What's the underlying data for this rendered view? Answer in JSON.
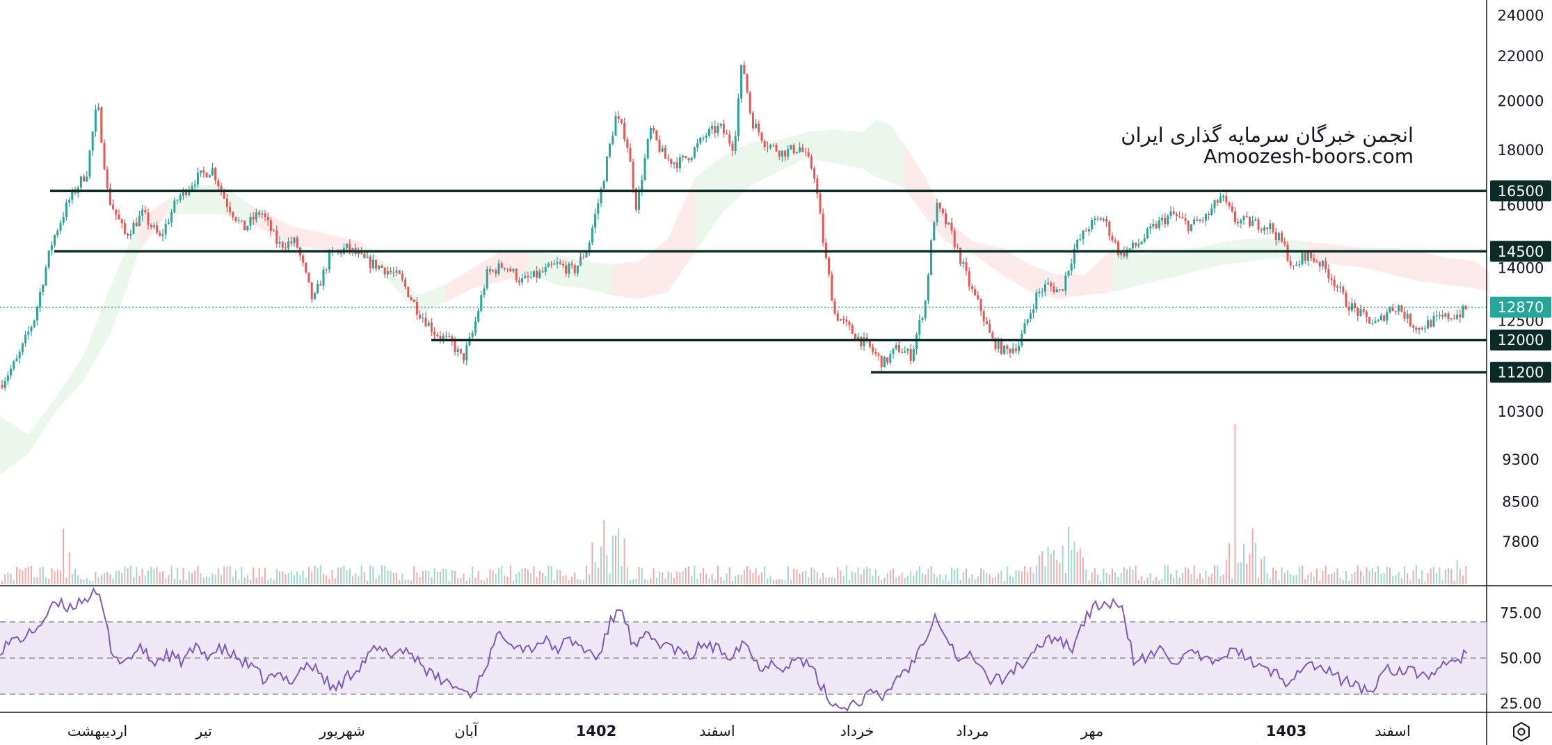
{
  "chart_data": {
    "type": "candlestick",
    "watermark": {
      "line1": "انجمن خبرگان سرمایه گذاری ایران",
      "line2": "Amoozesh-boors.com"
    },
    "price_axis": {
      "ticks": [
        24000,
        22000,
        20000,
        18000,
        16000,
        14000,
        12500,
        10300,
        9300,
        8500,
        7800
      ],
      "scale": "log",
      "range": [
        7100,
        24800
      ]
    },
    "rsi_axis": {
      "ticks": [
        "75.00",
        "50.00",
        "25.00"
      ],
      "range": [
        20,
        90
      ],
      "levels": [
        70,
        50,
        30
      ]
    },
    "time_axis": {
      "labels": [
        "اردیبهشت",
        "تیر",
        "شهریور",
        "آبان",
        "1402",
        "اسفند",
        "خرداد",
        "مرداد",
        "مهر",
        "1403",
        "اسفند"
      ]
    },
    "levels": [
      {
        "price": 16500,
        "label": "16500"
      },
      {
        "price": 14500,
        "label": "14500"
      },
      {
        "price": 12000,
        "label": "12000"
      },
      {
        "price": 11200,
        "label": "11200"
      }
    ],
    "last_price": {
      "price": 12870,
      "label": "12870"
    },
    "price_path": [
      [
        0,
        10900
      ],
      [
        25,
        11500
      ],
      [
        50,
        12600
      ],
      [
        75,
        14800
      ],
      [
        100,
        16200
      ],
      [
        125,
        17200
      ],
      [
        140,
        19900
      ],
      [
        155,
        16300
      ],
      [
        180,
        15000
      ],
      [
        205,
        15700
      ],
      [
        230,
        14900
      ],
      [
        255,
        16200
      ],
      [
        280,
        16900
      ],
      [
        305,
        17300
      ],
      [
        325,
        16100
      ],
      [
        350,
        15200
      ],
      [
        375,
        15800
      ],
      [
        400,
        14700
      ],
      [
        425,
        14800
      ],
      [
        450,
        13000
      ],
      [
        475,
        14400
      ],
      [
        500,
        14600
      ],
      [
        525,
        14200
      ],
      [
        550,
        14000
      ],
      [
        575,
        13700
      ],
      [
        600,
        12800
      ],
      [
        625,
        12200
      ],
      [
        650,
        11900
      ],
      [
        665,
        11500
      ],
      [
        680,
        12200
      ],
      [
        700,
        13800
      ],
      [
        725,
        14100
      ],
      [
        750,
        13600
      ],
      [
        775,
        13800
      ],
      [
        800,
        14100
      ],
      [
        825,
        13900
      ],
      [
        845,
        14600
      ],
      [
        865,
        16600
      ],
      [
        885,
        19300
      ],
      [
        900,
        18500
      ],
      [
        915,
        15900
      ],
      [
        935,
        18800
      ],
      [
        955,
        17700
      ],
      [
        975,
        17500
      ],
      [
        995,
        17900
      ],
      [
        1015,
        18600
      ],
      [
        1035,
        18900
      ],
      [
        1055,
        18100
      ],
      [
        1067,
        21800
      ],
      [
        1080,
        19200
      ],
      [
        1100,
        18300
      ],
      [
        1125,
        17900
      ],
      [
        1150,
        18100
      ],
      [
        1170,
        17200
      ],
      [
        1185,
        14500
      ],
      [
        1200,
        12700
      ],
      [
        1225,
        12200
      ],
      [
        1250,
        11800
      ],
      [
        1270,
        11400
      ],
      [
        1290,
        11800
      ],
      [
        1310,
        11600
      ],
      [
        1330,
        13000
      ],
      [
        1345,
        16000
      ],
      [
        1365,
        15200
      ],
      [
        1380,
        14300
      ],
      [
        1395,
        13400
      ],
      [
        1410,
        12800
      ],
      [
        1425,
        12000
      ],
      [
        1445,
        11700
      ],
      [
        1465,
        11900
      ],
      [
        1490,
        13200
      ],
      [
        1505,
        13500
      ],
      [
        1525,
        13300
      ],
      [
        1545,
        14600
      ],
      [
        1565,
        15300
      ],
      [
        1585,
        15600
      ],
      [
        1610,
        14400
      ],
      [
        1635,
        14700
      ],
      [
        1660,
        15300
      ],
      [
        1685,
        15700
      ],
      [
        1710,
        15300
      ],
      [
        1735,
        15600
      ],
      [
        1755,
        16300
      ],
      [
        1775,
        15500
      ],
      [
        1800,
        15400
      ],
      [
        1825,
        15300
      ],
      [
        1845,
        14700
      ],
      [
        1860,
        13900
      ],
      [
        1875,
        14400
      ],
      [
        1895,
        14200
      ],
      [
        1915,
        13700
      ],
      [
        1935,
        13000
      ],
      [
        1960,
        12600
      ],
      [
        1980,
        12400
      ],
      [
        1995,
        12800
      ],
      [
        2010,
        12900
      ],
      [
        2025,
        12500
      ],
      [
        2040,
        12300
      ],
      [
        2060,
        12500
      ],
      [
        2080,
        12600
      ],
      [
        2100,
        12700
      ],
      [
        2110,
        12870
      ]
    ],
    "cloud_upper": [
      [
        0,
        10200
      ],
      [
        40,
        9800
      ],
      [
        80,
        10600
      ],
      [
        120,
        11600
      ],
      [
        160,
        13500
      ],
      [
        200,
        15500
      ],
      [
        240,
        16200
      ],
      [
        280,
        16700
      ],
      [
        320,
        16700
      ],
      [
        360,
        16000
      ],
      [
        420,
        15300
      ],
      [
        480,
        15000
      ],
      [
        520,
        14800
      ],
      [
        560,
        14000
      ],
      [
        600,
        13200
      ],
      [
        640,
        13500
      ],
      [
        680,
        14000
      ],
      [
        720,
        14500
      ],
      [
        760,
        14500
      ],
      [
        800,
        14400
      ],
      [
        840,
        14200
      ],
      [
        880,
        14100
      ],
      [
        920,
        14200
      ],
      [
        960,
        14900
      ],
      [
        1000,
        17000
      ],
      [
        1040,
        17800
      ],
      [
        1080,
        18300
      ],
      [
        1120,
        18400
      ],
      [
        1160,
        18700
      ],
      [
        1200,
        18800
      ],
      [
        1240,
        18700
      ],
      [
        1260,
        19200
      ],
      [
        1280,
        19000
      ],
      [
        1300,
        18200
      ],
      [
        1330,
        17000
      ],
      [
        1360,
        15500
      ],
      [
        1400,
        14800
      ],
      [
        1440,
        14600
      ],
      [
        1480,
        14100
      ],
      [
        1520,
        13800
      ],
      [
        1560,
        13800
      ],
      [
        1600,
        14600
      ],
      [
        1640,
        14400
      ],
      [
        1680,
        14500
      ],
      [
        1720,
        14600
      ],
      [
        1760,
        14800
      ],
      [
        1800,
        14900
      ],
      [
        1840,
        14900
      ],
      [
        1880,
        14800
      ],
      [
        1920,
        14700
      ],
      [
        1960,
        14600
      ],
      [
        2000,
        14600
      ],
      [
        2040,
        14500
      ],
      [
        2080,
        14300
      ],
      [
        2120,
        14200
      ],
      [
        2140,
        13900
      ]
    ],
    "cloud_lower": [
      [
        0,
        9000
      ],
      [
        40,
        9400
      ],
      [
        80,
        10300
      ],
      [
        120,
        11000
      ],
      [
        160,
        12200
      ],
      [
        200,
        14500
      ],
      [
        240,
        15700
      ],
      [
        280,
        15700
      ],
      [
        320,
        15700
      ],
      [
        360,
        15400
      ],
      [
        420,
        14700
      ],
      [
        480,
        14500
      ],
      [
        520,
        14500
      ],
      [
        560,
        13600
      ],
      [
        600,
        12700
      ],
      [
        640,
        13000
      ],
      [
        680,
        13400
      ],
      [
        720,
        13600
      ],
      [
        760,
        13800
      ],
      [
        800,
        13500
      ],
      [
        840,
        13400
      ],
      [
        880,
        13200
      ],
      [
        920,
        13100
      ],
      [
        960,
        13300
      ],
      [
        1000,
        14500
      ],
      [
        1040,
        15800
      ],
      [
        1080,
        16700
      ],
      [
        1120,
        17200
      ],
      [
        1160,
        17700
      ],
      [
        1200,
        17500
      ],
      [
        1240,
        17300
      ],
      [
        1260,
        17000
      ],
      [
        1280,
        16800
      ],
      [
        1300,
        16600
      ],
      [
        1330,
        15600
      ],
      [
        1360,
        14800
      ],
      [
        1400,
        14400
      ],
      [
        1440,
        13800
      ],
      [
        1480,
        13300
      ],
      [
        1520,
        13100
      ],
      [
        1560,
        13200
      ],
      [
        1600,
        13300
      ],
      [
        1640,
        13500
      ],
      [
        1680,
        13700
      ],
      [
        1720,
        13900
      ],
      [
        1760,
        14100
      ],
      [
        1800,
        14200
      ],
      [
        1840,
        14300
      ],
      [
        1880,
        14200
      ],
      [
        1920,
        14100
      ],
      [
        1960,
        14000
      ],
      [
        2000,
        13800
      ],
      [
        2040,
        13600
      ],
      [
        2080,
        13500
      ],
      [
        2120,
        13400
      ],
      [
        2140,
        13300
      ]
    ],
    "rsi_path": [
      [
        0,
        55
      ],
      [
        20,
        60
      ],
      [
        40,
        62
      ],
      [
        60,
        70
      ],
      [
        80,
        80
      ],
      [
        100,
        78
      ],
      [
        120,
        83
      ],
      [
        135,
        85
      ],
      [
        145,
        82
      ],
      [
        160,
        55
      ],
      [
        175,
        47
      ],
      [
        190,
        52
      ],
      [
        205,
        55
      ],
      [
        220,
        47
      ],
      [
        240,
        52
      ],
      [
        260,
        48
      ],
      [
        280,
        55
      ],
      [
        300,
        52
      ],
      [
        320,
        55
      ],
      [
        340,
        50
      ],
      [
        360,
        45
      ],
      [
        380,
        38
      ],
      [
        400,
        40
      ],
      [
        420,
        38
      ],
      [
        440,
        47
      ],
      [
        460,
        42
      ],
      [
        480,
        32
      ],
      [
        500,
        40
      ],
      [
        520,
        47
      ],
      [
        540,
        55
      ],
      [
        560,
        52
      ],
      [
        580,
        55
      ],
      [
        600,
        50
      ],
      [
        620,
        40
      ],
      [
        640,
        37
      ],
      [
        660,
        33
      ],
      [
        680,
        30
      ],
      [
        700,
        48
      ],
      [
        720,
        65
      ],
      [
        740,
        58
      ],
      [
        760,
        55
      ],
      [
        780,
        60
      ],
      [
        800,
        55
      ],
      [
        820,
        60
      ],
      [
        840,
        55
      ],
      [
        860,
        50
      ],
      [
        880,
        72
      ],
      [
        895,
        78
      ],
      [
        910,
        55
      ],
      [
        930,
        62
      ],
      [
        950,
        58
      ],
      [
        970,
        55
      ],
      [
        990,
        50
      ],
      [
        1010,
        58
      ],
      [
        1030,
        55
      ],
      [
        1050,
        52
      ],
      [
        1070,
        60
      ],
      [
        1090,
        45
      ],
      [
        1110,
        48
      ],
      [
        1130,
        45
      ],
      [
        1150,
        50
      ],
      [
        1170,
        42
      ],
      [
        1190,
        28
      ],
      [
        1210,
        22
      ],
      [
        1230,
        25
      ],
      [
        1250,
        30
      ],
      [
        1270,
        28
      ],
      [
        1290,
        40
      ],
      [
        1310,
        46
      ],
      [
        1330,
        62
      ],
      [
        1345,
        75
      ],
      [
        1360,
        62
      ],
      [
        1380,
        48
      ],
      [
        1400,
        52
      ],
      [
        1420,
        38
      ],
      [
        1440,
        38
      ],
      [
        1460,
        45
      ],
      [
        1480,
        48
      ],
      [
        1500,
        60
      ],
      [
        1520,
        62
      ],
      [
        1540,
        55
      ],
      [
        1560,
        72
      ],
      [
        1580,
        80
      ],
      [
        1600,
        80
      ],
      [
        1615,
        75
      ],
      [
        1630,
        48
      ],
      [
        1650,
        50
      ],
      [
        1670,
        55
      ],
      [
        1690,
        48
      ],
      [
        1710,
        52
      ],
      [
        1730,
        50
      ],
      [
        1750,
        45
      ],
      [
        1770,
        58
      ],
      [
        1790,
        50
      ],
      [
        1810,
        45
      ],
      [
        1830,
        42
      ],
      [
        1850,
        37
      ],
      [
        1870,
        45
      ],
      [
        1890,
        46
      ],
      [
        1910,
        42
      ],
      [
        1930,
        38
      ],
      [
        1950,
        35
      ],
      [
        1970,
        30
      ],
      [
        1990,
        45
      ],
      [
        2010,
        43
      ],
      [
        2030,
        42
      ],
      [
        2050,
        40
      ],
      [
        2070,
        45
      ],
      [
        2090,
        46
      ],
      [
        2110,
        55
      ]
    ],
    "volume": {
      "scale_max": 100,
      "spikes": [
        [
          90,
          35
        ],
        [
          100,
          20
        ],
        [
          870,
          40
        ],
        [
          890,
          35
        ],
        [
          1775,
          100
        ],
        [
          1800,
          35
        ],
        [
          1535,
          36
        ],
        [
          1495,
          18
        ],
        [
          2095,
          15
        ]
      ]
    }
  }
}
